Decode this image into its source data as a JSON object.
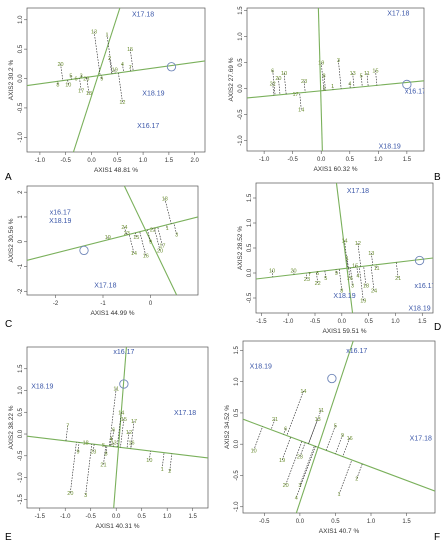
{
  "colors": {
    "axis_line": "#7ab05b",
    "variable_label": "#3a56a8",
    "site_label": "#6c8e32",
    "projection": "#222222",
    "frame": "#555555"
  },
  "chart_data": [
    {
      "type": "scatter",
      "panel_letter": "A",
      "xlabel": "AXIS1 48.81 %",
      "ylabel": "AXIS2 30.2 %",
      "xlim": [
        -1.25,
        2.2
      ],
      "ylim": [
        -1.25,
        1.2
      ],
      "xticks": [
        "-1.0",
        "-0.5",
        "0.0",
        "0.5",
        "1.0",
        "1.5",
        "2.0"
      ],
      "yticks": [
        "-1.0",
        "-0.5",
        "0.0",
        "0.5",
        "1.0"
      ],
      "xtick_values": [
        -1.0,
        -0.5,
        0.0,
        0.5,
        1.0,
        1.5,
        2.0
      ],
      "ytick_values": [
        -1.0,
        -0.5,
        0.0,
        0.5,
        1.0
      ],
      "variables": [
        {
          "label": "X17.18",
          "x": 1.0,
          "y": 1.1
        },
        {
          "label": "X18.19",
          "x": 1.2,
          "y": -0.25
        },
        {
          "label": "X16.17",
          "x": 1.1,
          "y": -0.8
        }
      ],
      "axis_lines": [
        {
          "x1": -1.25,
          "y1": -0.12,
          "x2": 2.2,
          "y2": 0.3
        },
        {
          "x1": 0.55,
          "y1": 1.2,
          "x2": -0.35,
          "y2": -1.25
        }
      ],
      "highlight": {
        "x": 1.55,
        "y": 0.2
      },
      "sites": [
        {
          "label": "20",
          "x": -0.6,
          "y": 0.25
        },
        {
          "label": "5",
          "x": -0.4,
          "y": 0.05
        },
        {
          "label": "3",
          "x": -0.2,
          "y": 0.05
        },
        {
          "label": "6",
          "x": -0.3,
          "y": 0.0
        },
        {
          "label": "23",
          "x": -0.1,
          "y": 0.0
        },
        {
          "label": "17",
          "x": -0.2,
          "y": -0.2
        },
        {
          "label": "18",
          "x": -0.05,
          "y": -0.25
        },
        {
          "label": "9",
          "x": 0.2,
          "y": 0.0
        },
        {
          "label": "19",
          "x": 0.45,
          "y": 0.15
        },
        {
          "label": "4",
          "x": 0.6,
          "y": 0.25
        },
        {
          "label": "15",
          "x": 0.75,
          "y": 0.5
        },
        {
          "label": "7",
          "x": 0.75,
          "y": 0.2
        },
        {
          "label": "13",
          "x": 0.05,
          "y": 0.8
        },
        {
          "label": "1",
          "x": 0.3,
          "y": 0.75
        },
        {
          "label": "2",
          "x": 0.35,
          "y": 0.35
        },
        {
          "label": "12",
          "x": 0.6,
          "y": -0.4
        },
        {
          "label": "8",
          "x": -0.65,
          "y": -0.1
        },
        {
          "label": "10",
          "x": -0.45,
          "y": -0.1
        }
      ]
    },
    {
      "type": "scatter",
      "panel_letter": "B",
      "xlabel": "AXIS1 60.32 %",
      "ylabel": "AXIS2 27.69 %",
      "xlim": [
        -1.3,
        1.8
      ],
      "ylim": [
        -1.2,
        1.55
      ],
      "xticks": [
        "-1.0",
        "-0.5",
        "0.0",
        "0.5",
        "1.0",
        "1.5"
      ],
      "yticks": [
        "-1.0",
        "-0.5",
        "0.0",
        "0.5",
        "1.0",
        "1.5"
      ],
      "xtick_values": [
        -1.0,
        -0.5,
        0.0,
        0.5,
        1.0,
        1.5
      ],
      "ytick_values": [
        -1.0,
        -0.5,
        0.0,
        0.5,
        1.0,
        1.5
      ],
      "variables": [
        {
          "label": "X17.18",
          "x": 1.35,
          "y": 1.45
        },
        {
          "label": "x16.17",
          "x": 1.65,
          "y": -0.05
        },
        {
          "label": "X18.19",
          "x": 1.2,
          "y": -1.1
        }
      ],
      "axis_lines": [
        {
          "x1": -1.3,
          "y1": -0.18,
          "x2": 1.8,
          "y2": 0.15
        },
        {
          "x1": -0.05,
          "y1": 1.55,
          "x2": 0.02,
          "y2": -1.2
        }
      ],
      "highlight": {
        "x": 1.5,
        "y": 0.08
      },
      "sites": [
        {
          "label": "6",
          "x": -0.85,
          "y": 0.35
        },
        {
          "label": "22",
          "x": -0.85,
          "y": 0.1
        },
        {
          "label": "10",
          "x": -0.65,
          "y": 0.3
        },
        {
          "label": "20",
          "x": -0.75,
          "y": 0.2
        },
        {
          "label": "23",
          "x": -0.3,
          "y": 0.15
        },
        {
          "label": "17",
          "x": -0.45,
          "y": -0.1
        },
        {
          "label": "14",
          "x": -0.35,
          "y": -0.4
        },
        {
          "label": "19",
          "x": 0.0,
          "y": 0.5
        },
        {
          "label": "3",
          "x": 0.3,
          "y": 0.55
        },
        {
          "label": "1",
          "x": 0.2,
          "y": 0.05
        },
        {
          "label": "2",
          "x": 0.05,
          "y": 0.0
        },
        {
          "label": "13",
          "x": 0.55,
          "y": 0.3
        },
        {
          "label": "5",
          "x": 0.7,
          "y": 0.25
        },
        {
          "label": "11",
          "x": 0.8,
          "y": 0.3
        },
        {
          "label": "15",
          "x": 0.95,
          "y": 0.35
        },
        {
          "label": "4",
          "x": 0.5,
          "y": 0.1
        },
        {
          "label": "8",
          "x": 0.05,
          "y": 0.25
        }
      ]
    },
    {
      "type": "scatter",
      "panel_letter": "C",
      "xlabel": "AXIS1 44.99 %",
      "ylabel": "AXIS2 30.56 %",
      "xlim": [
        -2.6,
        1.0
      ],
      "ylim": [
        -2.15,
        2.25
      ],
      "xticks": [
        "-2",
        "-1",
        "0"
      ],
      "yticks": [
        "-2",
        "-1",
        "0",
        "1",
        "2"
      ],
      "xtick_values": [
        -2,
        -1,
        0
      ],
      "ytick_values": [
        -2,
        -1,
        0,
        1,
        2
      ],
      "variables": [
        {
          "label": "x16.17",
          "x": -1.9,
          "y": 1.2
        },
        {
          "label": "X18.19",
          "x": -1.9,
          "y": 0.85
        },
        {
          "label": "X17.18",
          "x": -0.95,
          "y": -1.75
        }
      ],
      "axis_lines": [
        {
          "x1": -2.6,
          "y1": -0.75,
          "x2": 1.0,
          "y2": 1.0
        },
        {
          "x1": -0.55,
          "y1": 2.25,
          "x2": 0.55,
          "y2": -2.15
        }
      ],
      "highlight": {
        "x": -1.4,
        "y": -0.35
      },
      "sites": [
        {
          "label": "18",
          "x": 0.3,
          "y": 1.75
        },
        {
          "label": "24",
          "x": -0.55,
          "y": 0.6
        },
        {
          "label": "19",
          "x": -0.9,
          "y": 0.2
        },
        {
          "label": "23",
          "x": -0.5,
          "y": 0.35
        },
        {
          "label": "15",
          "x": -0.3,
          "y": 0.2
        },
        {
          "label": "22",
          "x": 0.05,
          "y": 0.5
        },
        {
          "label": "1",
          "x": 0.35,
          "y": 0.55
        },
        {
          "label": "3",
          "x": 0.55,
          "y": 0.3
        },
        {
          "label": "9",
          "x": 0.0,
          "y": 0.0
        },
        {
          "label": "14",
          "x": -0.35,
          "y": -0.45
        },
        {
          "label": "16",
          "x": -0.1,
          "y": -0.55
        },
        {
          "label": "20",
          "x": 0.2,
          "y": -0.35
        },
        {
          "label": "17",
          "x": 0.25,
          "y": -0.15
        }
      ]
    },
    {
      "type": "scatter",
      "panel_letter": "D",
      "xlabel": "AXIS1 59.51 %",
      "ylabel": "AXIS2 28.52 %",
      "xlim": [
        -1.6,
        1.7
      ],
      "ylim": [
        -0.8,
        1.8
      ],
      "xticks": [
        "-1.5",
        "-1.0",
        "-0.5",
        "0.0",
        "0.5",
        "1.0",
        "1.5"
      ],
      "yticks": [
        "-0.5",
        "0.0",
        "0.5",
        "1.0",
        "1.5"
      ],
      "xtick_values": [
        -1.5,
        -1.0,
        -0.5,
        0.0,
        0.5,
        1.0,
        1.5
      ],
      "ytick_values": [
        -0.5,
        0.0,
        0.5,
        1.0,
        1.5
      ],
      "variables": [
        {
          "label": "X17.18",
          "x": 0.3,
          "y": 1.65
        },
        {
          "label": "X18.19",
          "x": 0.05,
          "y": -0.45
        },
        {
          "label": "x16.17",
          "x": 1.55,
          "y": -0.25
        },
        {
          "label": "X18.19",
          "x": 1.45,
          "y": -0.7
        }
      ],
      "axis_lines": [
        {
          "x1": -1.6,
          "y1": -0.12,
          "x2": 1.7,
          "y2": 0.3
        },
        {
          "x1": -0.1,
          "y1": 1.8,
          "x2": 0.2,
          "y2": -0.8
        }
      ],
      "highlight": {
        "x": 1.45,
        "y": 0.25
      },
      "sites": [
        {
          "label": "10",
          "x": -1.3,
          "y": 0.05
        },
        {
          "label": "20",
          "x": -0.9,
          "y": 0.05
        },
        {
          "label": "7",
          "x": -0.6,
          "y": -0.02
        },
        {
          "label": "23",
          "x": -0.65,
          "y": -0.12
        },
        {
          "label": "6",
          "x": -0.45,
          "y": 0.0
        },
        {
          "label": "22",
          "x": -0.45,
          "y": -0.2
        },
        {
          "label": "5",
          "x": -0.3,
          "y": -0.1
        },
        {
          "label": "9",
          "x": -0.1,
          "y": 0.0
        },
        {
          "label": "12",
          "x": 0.3,
          "y": 0.6
        },
        {
          "label": "14",
          "x": 0.05,
          "y": 0.65
        },
        {
          "label": "13",
          "x": 0.55,
          "y": 0.4
        },
        {
          "label": "1",
          "x": 0.1,
          "y": 0.3
        },
        {
          "label": "15",
          "x": 0.25,
          "y": 0.15
        },
        {
          "label": "11",
          "x": 0.65,
          "y": 0.1
        },
        {
          "label": "4",
          "x": 0.3,
          "y": -0.05
        },
        {
          "label": "3",
          "x": 0.2,
          "y": -0.25
        },
        {
          "label": "18",
          "x": 0.45,
          "y": -0.25
        },
        {
          "label": "16",
          "x": 0.15,
          "y": -0.1
        },
        {
          "label": "24",
          "x": 0.6,
          "y": -0.35
        },
        {
          "label": "21",
          "x": 1.05,
          "y": -0.1
        },
        {
          "label": "19",
          "x": 0.4,
          "y": -0.55
        },
        {
          "label": "8",
          "x": 0.0,
          "y": -0.35
        }
      ]
    },
    {
      "type": "scatter",
      "panel_letter": "E",
      "xlabel": "AXIS1 40.31 %",
      "ylabel": "AXIS2 38.22 %",
      "xlim": [
        -1.75,
        1.8
      ],
      "ylim": [
        -1.7,
        2.0
      ],
      "xticks": [
        "-1.5",
        "-1.0",
        "-0.5",
        "0.0",
        "0.5",
        "1.0",
        "1.5"
      ],
      "yticks": [
        "-1.5",
        "-1.0",
        "-0.5",
        "0.0",
        "0.5",
        "1.0",
        "1.5"
      ],
      "xtick_values": [
        -1.5,
        -1.0,
        -0.5,
        0.0,
        0.5,
        1.0,
        1.5
      ],
      "ytick_values": [
        -1.5,
        -1.0,
        -0.5,
        0.0,
        0.5,
        1.0,
        1.5
      ],
      "variables": [
        {
          "label": "x16.17",
          "x": 0.15,
          "y": 1.9
        },
        {
          "label": "X18.19",
          "x": -1.45,
          "y": 1.1
        },
        {
          "label": "X17.18",
          "x": 1.35,
          "y": 0.5
        }
      ],
      "axis_lines": [
        {
          "x1": -1.75,
          "y1": -0.05,
          "x2": 1.8,
          "y2": -0.55
        },
        {
          "x1": 0.2,
          "y1": 2.0,
          "x2": -0.05,
          "y2": -1.7
        }
      ],
      "highlight": {
        "x": 0.15,
        "y": 1.15
      },
      "sites": [
        {
          "label": "11",
          "x": 0.0,
          "y": 1.05
        },
        {
          "label": "14",
          "x": 0.1,
          "y": 0.5
        },
        {
          "label": "15",
          "x": 0.15,
          "y": 0.35
        },
        {
          "label": "17",
          "x": 0.35,
          "y": 0.3
        },
        {
          "label": "7",
          "x": -0.95,
          "y": 0.2
        },
        {
          "label": "6",
          "x": -0.05,
          "y": 0.1
        },
        {
          "label": "12",
          "x": 0.25,
          "y": 0.05
        },
        {
          "label": "4",
          "x": -0.1,
          "y": -0.1
        },
        {
          "label": "18",
          "x": -0.6,
          "y": -0.2
        },
        {
          "label": "5",
          "x": -0.25,
          "y": -0.25
        },
        {
          "label": "13",
          "x": -0.05,
          "y": -0.2
        },
        {
          "label": "16",
          "x": 0.3,
          "y": -0.2
        },
        {
          "label": "9",
          "x": -0.75,
          "y": -0.4
        },
        {
          "label": "23",
          "x": -0.45,
          "y": -0.4
        },
        {
          "label": "8",
          "x": -0.2,
          "y": -0.45
        },
        {
          "label": "10",
          "x": 0.65,
          "y": -0.6
        },
        {
          "label": "21",
          "x": -0.25,
          "y": -0.7
        },
        {
          "label": "1",
          "x": 0.9,
          "y": -0.8
        },
        {
          "label": "2",
          "x": 1.05,
          "y": -0.85
        },
        {
          "label": "20",
          "x": -0.9,
          "y": -1.35
        },
        {
          "label": "3",
          "x": -0.6,
          "y": -1.4
        }
      ]
    },
    {
      "type": "scatter",
      "panel_letter": "F",
      "xlabel": "AXIS1 40.7 %",
      "ylabel": "AXIS2 34.52 %",
      "xlim": [
        -0.8,
        1.9
      ],
      "ylim": [
        -1.1,
        1.65
      ],
      "xticks": [
        "-0.5",
        "0.0",
        "0.5",
        "1.0",
        "1.5"
      ],
      "yticks": [
        "-1.0",
        "-0.5",
        "0.0",
        "0.5",
        "1.0",
        "1.5"
      ],
      "xtick_values": [
        -0.5,
        0.0,
        0.5,
        1.0,
        1.5
      ],
      "ytick_values": [
        -1.0,
        -0.5,
        0.0,
        0.5,
        1.0,
        1.5
      ],
      "variables": [
        {
          "label": "x16.17",
          "x": 0.8,
          "y": 1.5
        },
        {
          "label": "X18.19",
          "x": -0.55,
          "y": 1.25
        },
        {
          "label": "X17.18",
          "x": 1.7,
          "y": 0.1
        }
      ],
      "axis_lines": [
        {
          "x1": -0.8,
          "y1": 0.4,
          "x2": 1.9,
          "y2": -0.75
        },
        {
          "x1": 0.75,
          "y1": 1.65,
          "x2": -0.05,
          "y2": -1.1
        }
      ],
      "highlight": {
        "x": 0.45,
        "y": 1.05
      },
      "sites": [
        {
          "label": "14",
          "x": 0.05,
          "y": 0.85
        },
        {
          "label": "11",
          "x": 0.3,
          "y": 0.55
        },
        {
          "label": "21",
          "x": -0.35,
          "y": 0.4
        },
        {
          "label": "13",
          "x": 0.25,
          "y": 0.4
        },
        {
          "label": "5",
          "x": 0.5,
          "y": 0.3
        },
        {
          "label": "6",
          "x": -0.2,
          "y": 0.25
        },
        {
          "label": "9",
          "x": 0.6,
          "y": 0.15
        },
        {
          "label": "16",
          "x": 0.7,
          "y": 0.1
        },
        {
          "label": "10",
          "x": -0.65,
          "y": -0.1
        },
        {
          "label": "19",
          "x": -0.25,
          "y": -0.25
        },
        {
          "label": "23",
          "x": 0.0,
          "y": -0.2
        },
        {
          "label": "2",
          "x": 0.8,
          "y": -0.55
        },
        {
          "label": "20",
          "x": -0.2,
          "y": -0.65
        },
        {
          "label": "3",
          "x": 0.0,
          "y": -0.65
        },
        {
          "label": "1",
          "x": 0.55,
          "y": -0.8
        },
        {
          "label": "4",
          "x": -0.05,
          "y": -0.85
        }
      ]
    }
  ]
}
